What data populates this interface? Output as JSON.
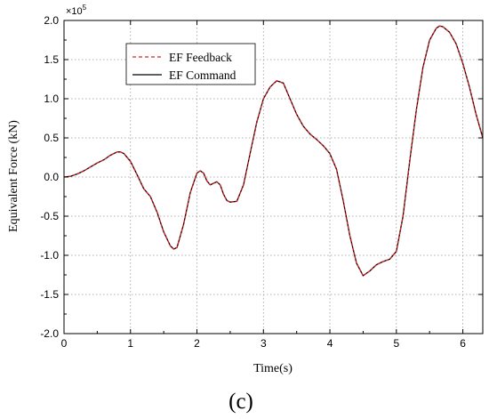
{
  "chart_data": {
    "type": "line",
    "title": "",
    "xlabel": "Time(s)",
    "ylabel": "Equivalent Force (kN)",
    "panel_label": "(c)",
    "y_multiplier": "×10",
    "y_multiplier_exponent": "5",
    "xlim": [
      0,
      6.3
    ],
    "ylim": [
      -2.0,
      2.0
    ],
    "grid": true,
    "grid_style": "dotted",
    "legend_position": "top-left",
    "x_ticks": [
      0,
      1,
      2,
      3,
      4,
      5,
      6
    ],
    "x_tick_labels": [
      "0",
      "1",
      "2",
      "3",
      "4",
      "5",
      "6"
    ],
    "y_ticks": [
      2.0,
      1.5,
      1.0,
      0.5,
      0.0,
      -0.5,
      -1.0,
      -1.5,
      -2.0
    ],
    "y_tick_labels": [
      "2.0",
      "1.5",
      "1.0",
      "0.5",
      "0.0",
      "-0.5",
      "-1.0",
      "-1.5",
      "-2.0"
    ],
    "series": [
      {
        "name": "EF Feedback",
        "color": "#e02020",
        "style": "dashed",
        "x": [
          0,
          0.1,
          0.2,
          0.3,
          0.4,
          0.5,
          0.6,
          0.7,
          0.8,
          0.85,
          0.9,
          1.0,
          1.1,
          1.2,
          1.3,
          1.4,
          1.5,
          1.6,
          1.65,
          1.7,
          1.8,
          1.9,
          2.0,
          2.05,
          2.1,
          2.15,
          2.2,
          2.25,
          2.3,
          2.35,
          2.4,
          2.45,
          2.5,
          2.6,
          2.7,
          2.8,
          2.9,
          3.0,
          3.1,
          3.2,
          3.3,
          3.4,
          3.5,
          3.6,
          3.7,
          3.8,
          3.9,
          4.0,
          4.1,
          4.2,
          4.3,
          4.4,
          4.5,
          4.6,
          4.7,
          4.8,
          4.9,
          5.0,
          5.1,
          5.2,
          5.3,
          5.4,
          5.5,
          5.6,
          5.65,
          5.7,
          5.8,
          5.9,
          6.0,
          6.1,
          6.2,
          6.3
        ],
        "y": [
          0.0,
          0.01,
          0.04,
          0.08,
          0.13,
          0.18,
          0.22,
          0.28,
          0.32,
          0.32,
          0.3,
          0.2,
          0.03,
          -0.15,
          -0.25,
          -0.45,
          -0.7,
          -0.88,
          -0.92,
          -0.9,
          -0.6,
          -0.2,
          0.05,
          0.08,
          0.05,
          -0.05,
          -0.1,
          -0.08,
          -0.06,
          -0.1,
          -0.22,
          -0.3,
          -0.32,
          -0.31,
          -0.1,
          0.3,
          0.7,
          1.0,
          1.15,
          1.23,
          1.2,
          1.0,
          0.8,
          0.65,
          0.55,
          0.48,
          0.4,
          0.3,
          0.1,
          -0.3,
          -0.75,
          -1.1,
          -1.26,
          -1.2,
          -1.12,
          -1.08,
          -1.05,
          -0.95,
          -0.5,
          0.2,
          0.85,
          1.4,
          1.75,
          1.9,
          1.93,
          1.92,
          1.85,
          1.7,
          1.45,
          1.15,
          0.8,
          0.5
        ]
      },
      {
        "name": "EF Command",
        "color": "#000000",
        "style": "solid",
        "x": [
          0,
          0.1,
          0.2,
          0.3,
          0.4,
          0.5,
          0.6,
          0.7,
          0.8,
          0.85,
          0.9,
          1.0,
          1.1,
          1.2,
          1.3,
          1.4,
          1.5,
          1.6,
          1.65,
          1.7,
          1.8,
          1.9,
          2.0,
          2.05,
          2.1,
          2.15,
          2.2,
          2.25,
          2.3,
          2.35,
          2.4,
          2.45,
          2.5,
          2.6,
          2.7,
          2.8,
          2.9,
          3.0,
          3.1,
          3.2,
          3.3,
          3.4,
          3.5,
          3.6,
          3.7,
          3.8,
          3.9,
          4.0,
          4.1,
          4.2,
          4.3,
          4.4,
          4.5,
          4.6,
          4.7,
          4.8,
          4.9,
          5.0,
          5.1,
          5.2,
          5.3,
          5.4,
          5.5,
          5.6,
          5.65,
          5.7,
          5.8,
          5.9,
          6.0,
          6.1,
          6.2,
          6.3
        ],
        "y": [
          0.0,
          0.01,
          0.04,
          0.08,
          0.13,
          0.18,
          0.22,
          0.28,
          0.32,
          0.32,
          0.3,
          0.2,
          0.03,
          -0.15,
          -0.25,
          -0.45,
          -0.7,
          -0.88,
          -0.92,
          -0.9,
          -0.6,
          -0.2,
          0.05,
          0.08,
          0.05,
          -0.05,
          -0.1,
          -0.08,
          -0.06,
          -0.1,
          -0.22,
          -0.3,
          -0.32,
          -0.31,
          -0.1,
          0.3,
          0.7,
          1.0,
          1.15,
          1.23,
          1.2,
          1.0,
          0.8,
          0.65,
          0.55,
          0.48,
          0.4,
          0.3,
          0.1,
          -0.3,
          -0.75,
          -1.1,
          -1.26,
          -1.2,
          -1.12,
          -1.08,
          -1.05,
          -0.95,
          -0.5,
          0.2,
          0.85,
          1.4,
          1.75,
          1.9,
          1.93,
          1.92,
          1.85,
          1.7,
          1.45,
          1.15,
          0.8,
          0.5
        ]
      }
    ]
  }
}
